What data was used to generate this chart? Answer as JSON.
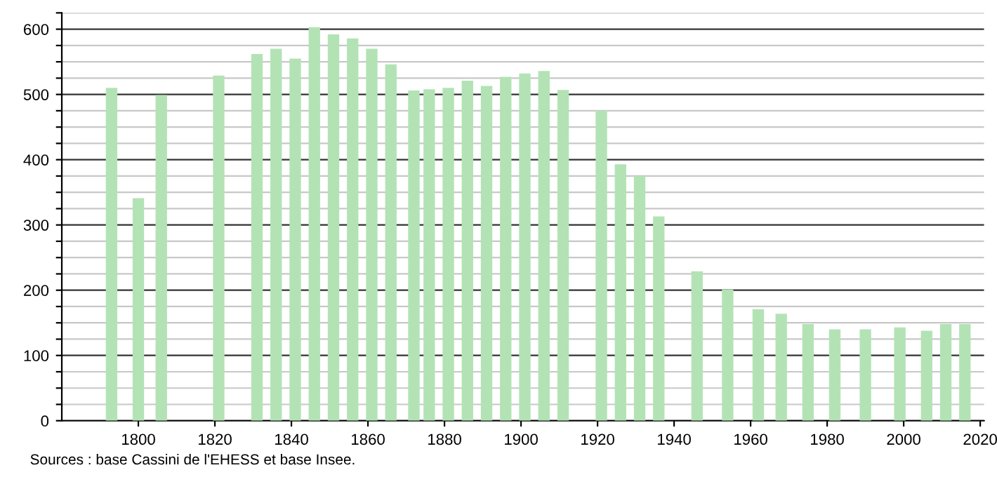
{
  "chart_data": {
    "type": "bar",
    "x": [
      1793,
      1800,
      1806,
      1821,
      1831,
      1836,
      1841,
      1846,
      1851,
      1856,
      1861,
      1866,
      1872,
      1876,
      1881,
      1886,
      1891,
      1896,
      1901,
      1906,
      1911,
      1921,
      1926,
      1931,
      1936,
      1946,
      1954,
      1962,
      1968,
      1975,
      1982,
      1990,
      1999,
      2006,
      2011,
      2016
    ],
    "values": [
      510,
      341,
      499,
      529,
      562,
      570,
      555,
      603,
      592,
      586,
      570,
      546,
      506,
      508,
      510,
      521,
      513,
      527,
      532,
      536,
      507,
      475,
      393,
      375,
      313,
      229,
      201,
      171,
      164,
      148,
      140,
      140,
      143,
      138,
      148,
      148
    ],
    "color": "#b3e3b5",
    "xlim": [
      1780,
      2021
    ],
    "xticks": [
      1800,
      1820,
      1840,
      1860,
      1880,
      1900,
      1920,
      1940,
      1960,
      1980,
      2000,
      2020
    ],
    "ylim": [
      0,
      625
    ],
    "yticks": [
      0,
      {
        "value": 25,
        "label": null
      },
      {
        "value": 50,
        "label": null
      },
      {
        "value": 75,
        "label": null
      },
      100,
      {
        "value": 125,
        "label": null
      },
      {
        "value": 150,
        "label": null
      },
      {
        "value": 175,
        "label": null
      },
      200,
      {
        "value": 225,
        "label": null
      },
      {
        "value": 250,
        "label": null
      },
      {
        "value": 275,
        "label": null
      },
      300,
      {
        "value": 325,
        "label": null
      },
      {
        "value": 350,
        "label": null
      },
      {
        "value": 375,
        "label": null
      },
      400,
      {
        "value": 425,
        "label": null
      },
      {
        "value": 450,
        "label": null
      },
      {
        "value": 475,
        "label": null
      },
      500,
      {
        "value": 525,
        "label": null
      },
      {
        "value": 550,
        "label": null
      },
      {
        "value": 575,
        "label": null
      },
      600,
      {
        "value": 625,
        "label": null
      }
    ],
    "grid": "y",
    "annotations": [
      "Sources : base Cassini de l'EHESS et base Insee."
    ]
  }
}
